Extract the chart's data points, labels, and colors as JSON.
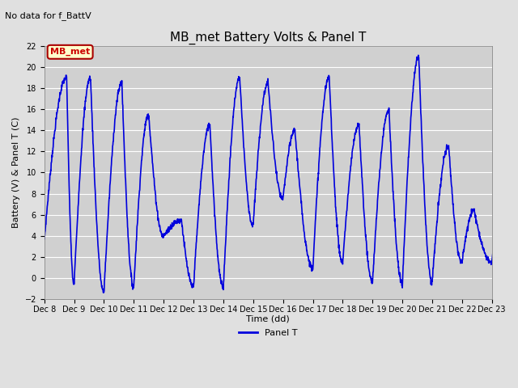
{
  "title": "MB_met Battery Volts & Panel T",
  "no_data_text": "No data for f_BattV",
  "xlabel": "Time (dd)",
  "ylabel": "Battery (V) & Panel T (C)",
  "ylim": [
    -2,
    22
  ],
  "yticks": [
    -2,
    0,
    2,
    4,
    6,
    8,
    10,
    12,
    14,
    16,
    18,
    20,
    22
  ],
  "line_color": "#0000dd",
  "line_width": 1.2,
  "legend_label": "Panel T",
  "legend_color": "#0000dd",
  "bg_color": "#e0e0e0",
  "plot_bg_color": "#d0d0d0",
  "grid_color": "#ffffff",
  "x_start": 8.0,
  "x_end": 23.0,
  "xtick_positions": [
    8,
    9,
    10,
    11,
    12,
    13,
    14,
    15,
    16,
    17,
    18,
    19,
    20,
    21,
    22,
    23
  ],
  "xtick_labels": [
    "Dec 8",
    "Dec 9",
    "Dec 10",
    "Dec 11",
    "Dec 12",
    "Dec 13",
    "Dec 14",
    "Dec 15",
    "Dec 16",
    "Dec 17",
    "Dec 18",
    "Dec 19",
    "Dec 20",
    "Dec 21",
    "Dec 22",
    "Dec 23"
  ],
  "legend_box_facecolor": "#ffffcc",
  "legend_box_edgecolor": "#aa0000",
  "legend_text_color": "#cc0000",
  "legend_label_MB": "MB_met",
  "title_fontsize": 11,
  "axis_label_fontsize": 8,
  "tick_fontsize": 7
}
